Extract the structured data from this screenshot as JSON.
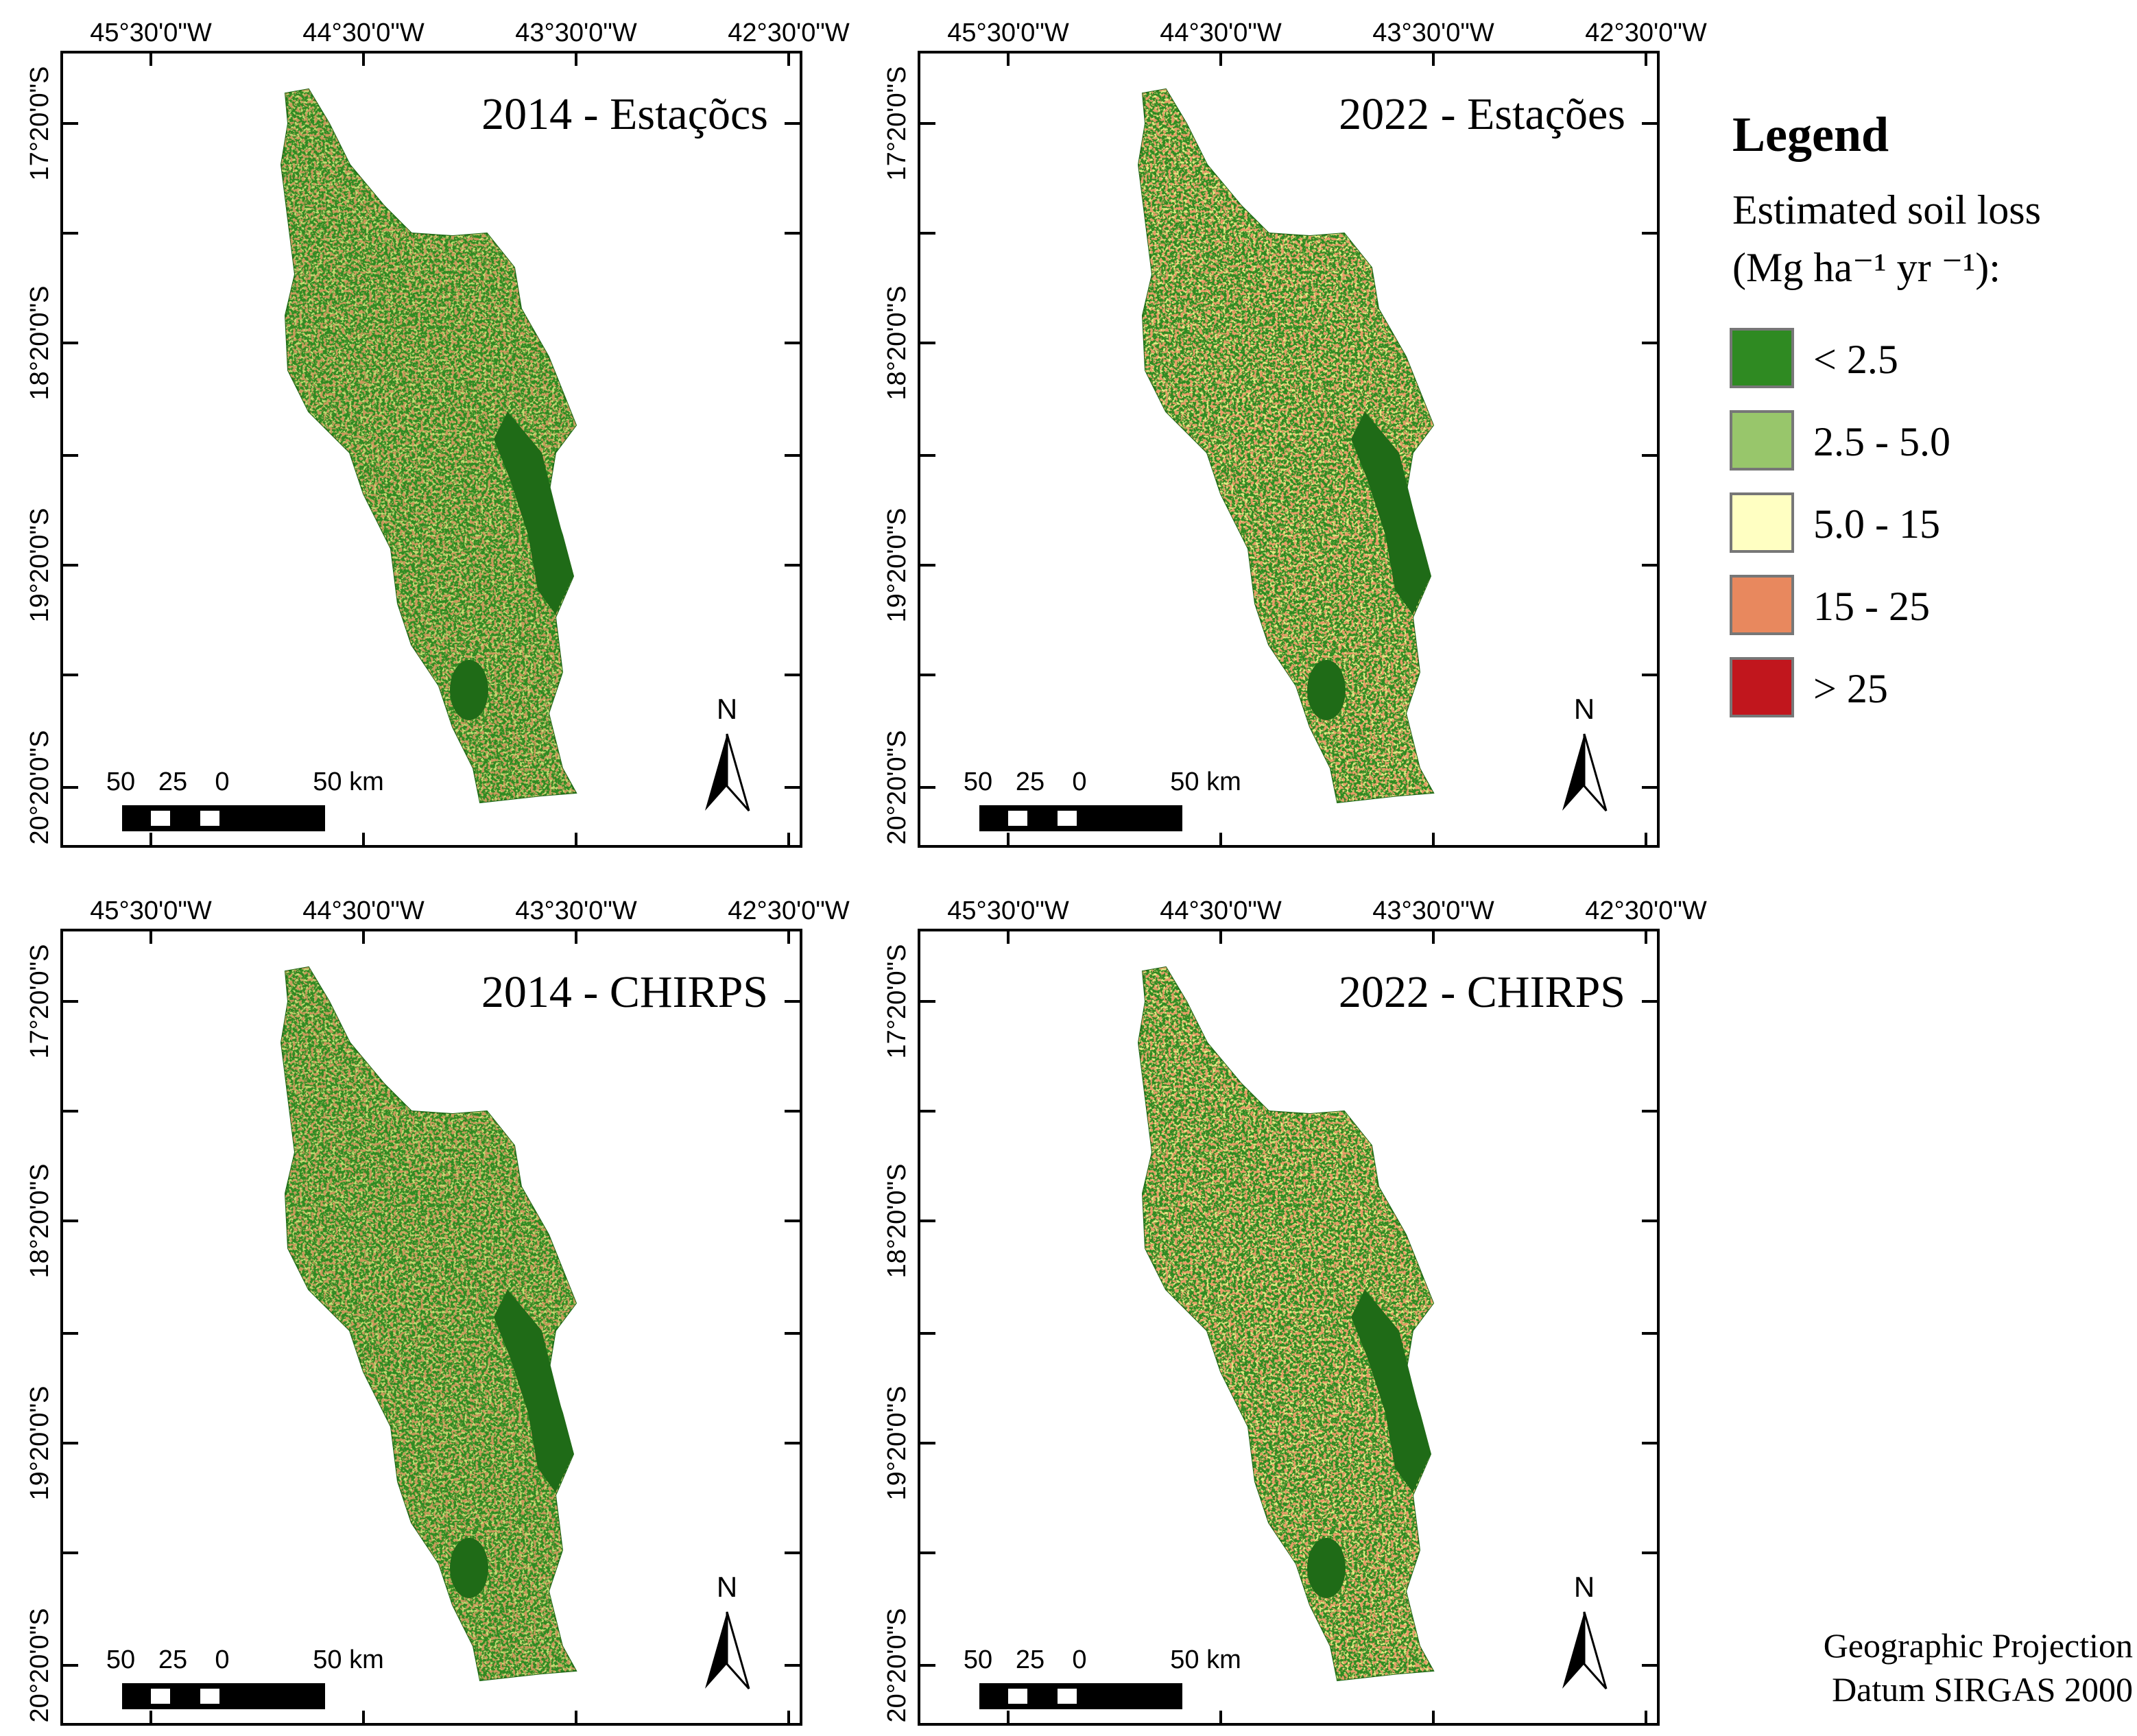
{
  "panels": [
    {
      "title": "2014 - Estaçõcs"
    },
    {
      "title": "2022 - Estações"
    },
    {
      "title": "2014 - CHIRPS"
    },
    {
      "title": "2022 - CHIRPS"
    }
  ],
  "axes": {
    "lon_labels": [
      "45°30'0\"W",
      "44°30'0\"W",
      "43°30'0\"W",
      "42°30'0\"W"
    ],
    "lat_labels": [
      "17°20'0\"S",
      "18°20'0\"S",
      "19°20'0\"S",
      "20°20'0\"S"
    ]
  },
  "scale_bar": {
    "labels": [
      "50",
      "25",
      "0",
      "50 km"
    ]
  },
  "north": "N",
  "legend": {
    "title": "Legend",
    "subtitle_1": "Estimated soil loss",
    "subtitle_2": "(Mg ha⁻¹ yr ⁻¹):",
    "classes": [
      {
        "label": "< 2.5",
        "color": "#2f8a22"
      },
      {
        "label": "2.5 - 5.0",
        "color": "#98c66b"
      },
      {
        "label": "5.0 - 15",
        "color": "#ffffc2"
      },
      {
        "label": "15 - 25",
        "color": "#e8885e"
      },
      {
        "label": "> 25",
        "color": "#c1161d"
      }
    ]
  },
  "footer": {
    "line_1": "Geographic Projection",
    "line_2": "Datum SIRGAS 2000"
  }
}
